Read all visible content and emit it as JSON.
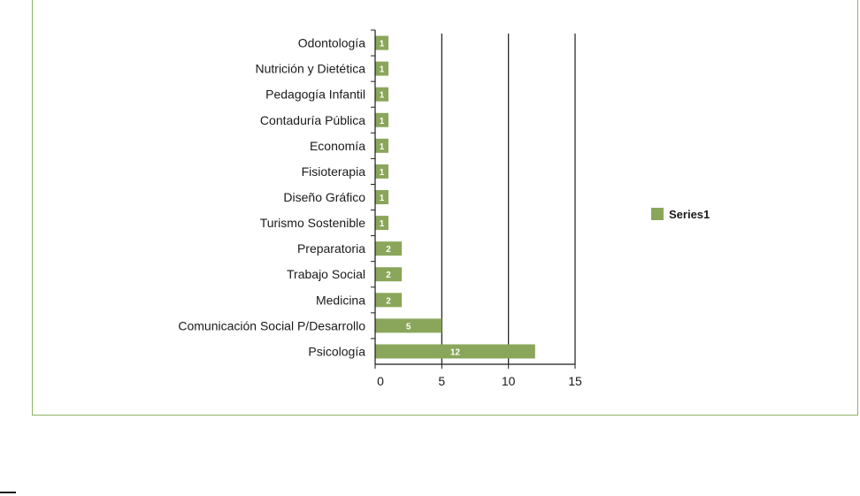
{
  "chart_data": {
    "type": "bar",
    "orientation": "horizontal",
    "categories": [
      "Odontología",
      "Nutrición y Dietética",
      "Pedagogía Infantil",
      "Contaduría Pública",
      "Economía",
      "Fisioterapia",
      "Diseño Gráfico",
      "Turismo Sostenible",
      "Preparatoria",
      "Trabajo Social",
      "Medicina",
      "Comunicación Social P/Desarrollo",
      "Psicología"
    ],
    "series": [
      {
        "name": "Series1",
        "values": [
          1,
          1,
          1,
          1,
          1,
          1,
          1,
          1,
          2,
          2,
          2,
          5,
          12
        ],
        "color": "#8aa65b"
      }
    ],
    "xlim": [
      0,
      15
    ],
    "xticks": [
      0,
      5,
      10,
      15
    ],
    "title": "",
    "xlabel": "",
    "ylabel": "",
    "grid": "vertical",
    "legend_position": "right",
    "data_labels": true,
    "frame_color": "#8db366",
    "grid_color": "#1a1a1a"
  }
}
